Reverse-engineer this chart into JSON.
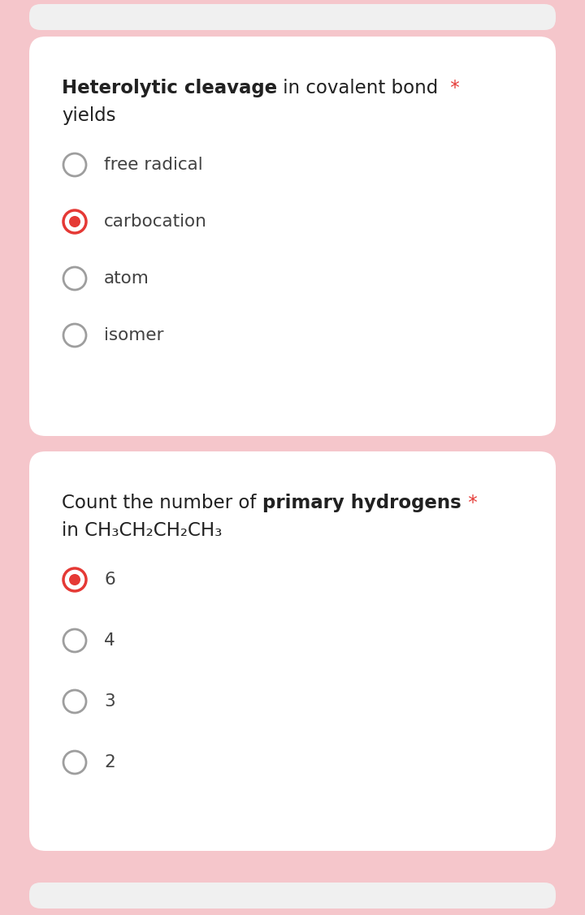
{
  "bg_color": "#f5c6cb",
  "card_color": "#ffffff",
  "top_card_color": "#f0f0f0",
  "bottom_card_color": "#f0f0f0",
  "q1": {
    "title_bold": "Heterolytic cleavage",
    "title_normal": " in covalent bond",
    "title_line2": "yields",
    "asterisk": " *",
    "options": [
      "free radical",
      "carbocation",
      "atom",
      "isomer"
    ],
    "selected": 1
  },
  "q2": {
    "title_part1": "Count the number of ",
    "title_bold": "primary hydrogens",
    "title_asterisk": " *",
    "title_line2": "in CH₃CH₂CH₂CH₃",
    "options": [
      "6",
      "4",
      "3",
      "2"
    ],
    "selected": 0
  },
  "radio_color_unselected_edge": "#9e9e9e",
  "radio_color_selected_edge": "#e53935",
  "radio_color_selected_fill": "#e53935",
  "text_dark": "#212121",
  "text_medium": "#424242",
  "asterisk_color": "#e53935",
  "title_fontsize": 16.5,
  "option_fontsize": 15.5
}
